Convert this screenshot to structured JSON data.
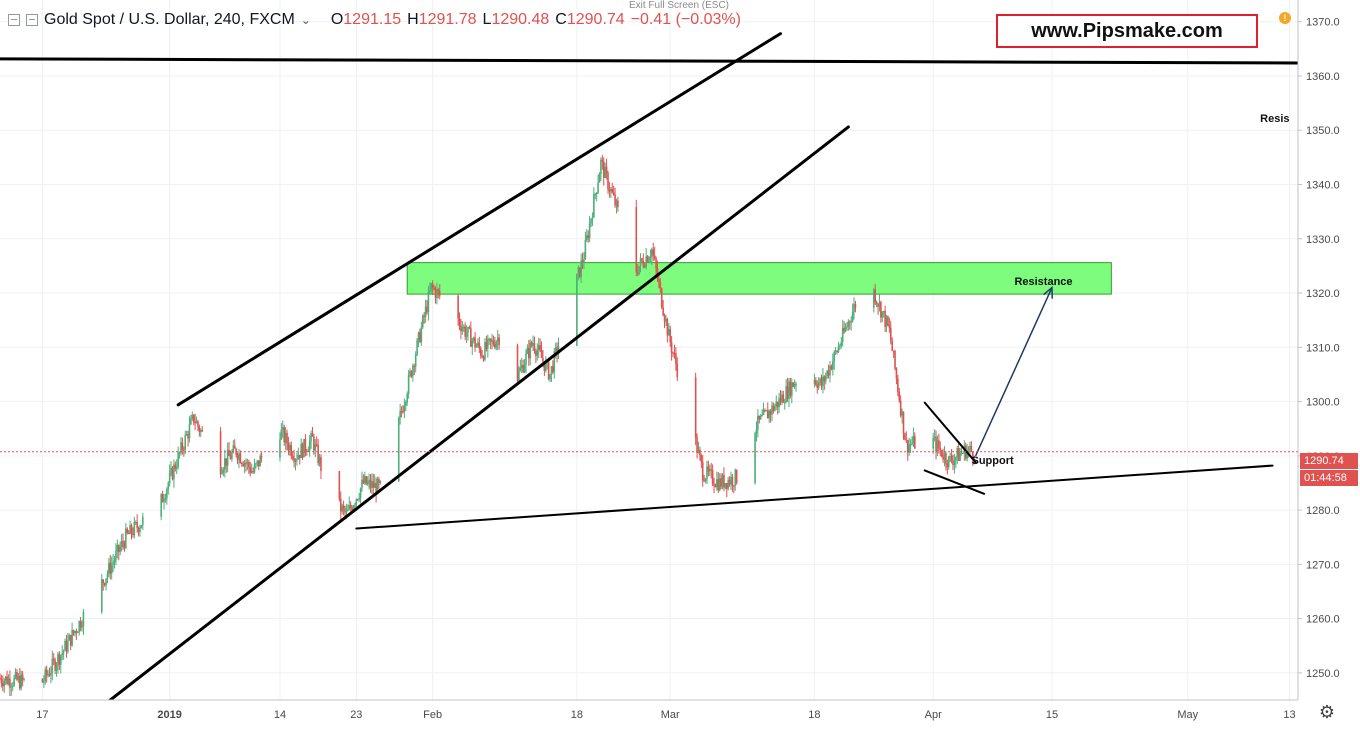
{
  "header": {
    "symbol_title": "Gold Spot / U.S. Dollar, 240, FXCM",
    "open_label": "O",
    "open_value": "1291.15",
    "high_label": "H",
    "high_value": "1291.78",
    "low_label": "L",
    "low_value": "1290.48",
    "close_label": "C",
    "close_value": "1290.74",
    "change": "−0.41 (−0.03%)"
  },
  "exit_fullscreen": "Exit Full Screen (ESC)",
  "watermark": "www.Pipsmake.com",
  "price_badge": "1290.74",
  "timer_badge": "01:44:58",
  "colors": {
    "up": "#4caf7a",
    "down": "#e0524f",
    "zone": "#7dfc7d",
    "grid": "#eef1f5",
    "axis_text": "#4a4a4a",
    "brand_border": "#e0202a"
  },
  "chart_data": {
    "type": "candlestick",
    "title": "Gold Spot / U.S. Dollar, 240, FXCM",
    "ylim": [
      1245,
      1374
    ],
    "y_ticks": [
      1250,
      1260,
      1270,
      1280,
      1290,
      1300,
      1310,
      1320,
      1330,
      1340,
      1350,
      1360,
      1370
    ],
    "x_ticks": [
      "17",
      "2019",
      "14",
      "23",
      "Feb",
      "18",
      "Mar",
      "18",
      "Apr",
      "15",
      "May",
      "13"
    ],
    "x_tick_dates": [
      "2018-12-17",
      "2019-01-01",
      "2019-01-14",
      "2019-01-23",
      "2019-02-01",
      "2019-02-18",
      "2019-03-01",
      "2019-03-18",
      "2019-04-01",
      "2019-04-15",
      "2019-05-01",
      "2019-05-13"
    ],
    "x_range": [
      "2018-12-12",
      "2019-05-14"
    ],
    "current_price": 1290.74,
    "price_path": [
      [
        "2018-12-12",
        1249
      ],
      [
        "2018-12-17",
        1248
      ],
      [
        "2018-12-20",
        1255
      ],
      [
        "2018-12-24",
        1266
      ],
      [
        "2018-12-27",
        1275
      ],
      [
        "2018-12-31",
        1281
      ],
      [
        "2019-01-02",
        1289
      ],
      [
        "2019-01-04",
        1297
      ],
      [
        "2019-01-07",
        1288
      ],
      [
        "2019-01-09",
        1291
      ],
      [
        "2019-01-11",
        1287
      ],
      [
        "2019-01-14",
        1295
      ],
      [
        "2019-01-16",
        1290
      ],
      [
        "2019-01-18",
        1293
      ],
      [
        "2019-01-20",
        1283
      ],
      [
        "2019-01-22",
        1279
      ],
      [
        "2019-01-24",
        1285
      ],
      [
        "2019-01-26",
        1284
      ],
      [
        "2019-01-28",
        1295
      ],
      [
        "2019-01-30",
        1308
      ],
      [
        "2019-02-01",
        1321
      ],
      [
        "2019-02-03",
        1318
      ],
      [
        "2019-02-05",
        1313
      ],
      [
        "2019-02-07",
        1309
      ],
      [
        "2019-02-09",
        1312
      ],
      [
        "2019-02-11",
        1304
      ],
      [
        "2019-02-13",
        1311
      ],
      [
        "2019-02-15",
        1305
      ],
      [
        "2019-02-17",
        1316
      ],
      [
        "2019-02-19",
        1327
      ],
      [
        "2019-02-21",
        1344
      ],
      [
        "2019-02-23",
        1335
      ],
      [
        "2019-02-25",
        1324
      ],
      [
        "2019-02-27",
        1328
      ],
      [
        "2019-03-01",
        1312
      ],
      [
        "2019-03-03",
        1300
      ],
      [
        "2019-03-05",
        1287
      ],
      [
        "2019-03-07",
        1285
      ],
      [
        "2019-03-09",
        1286
      ],
      [
        "2019-03-11",
        1295
      ],
      [
        "2019-03-14",
        1300
      ],
      [
        "2019-03-17",
        1306
      ],
      [
        "2019-03-19",
        1303
      ],
      [
        "2019-03-21",
        1310
      ],
      [
        "2019-03-23",
        1318
      ],
      [
        "2019-03-25",
        1321
      ],
      [
        "2019-03-27",
        1313
      ],
      [
        "2019-03-29",
        1292
      ],
      [
        "2019-04-01",
        1293
      ],
      [
        "2019-04-03",
        1289
      ],
      [
        "2019-04-05",
        1291
      ],
      [
        "2019-04-06",
        1290.74
      ]
    ],
    "resistance_zone": {
      "y_from": 1319.8,
      "y_to": 1325.6,
      "x_from": "2019-01-29",
      "x_to": "2019-04-22"
    },
    "annotations": [
      {
        "text": "Resistance",
        "x": "2019-04-14",
        "y": 1321.5
      },
      {
        "text": "Support",
        "x": "2019-04-08",
        "y": 1288.5
      },
      {
        "text": "Resis",
        "x": "2019-05-13",
        "y": 1351.5
      }
    ],
    "trendlines": [
      {
        "name": "top-horizontal",
        "from": [
          "2018-12-01",
          1363.2
        ],
        "to": [
          "2019-05-14",
          1362.4
        ],
        "width": 3
      },
      {
        "name": "channel-upper",
        "from": [
          "2019-01-02",
          1299.4
        ],
        "to": [
          "2019-03-14",
          1367.8
        ],
        "width": 3
      },
      {
        "name": "channel-lower",
        "from": [
          "2018-12-24",
          1243.8
        ],
        "to": [
          "2019-03-22",
          1350.6
        ],
        "width": 3
      },
      {
        "name": "support-line",
        "from": [
          "2019-01-23",
          1276.6
        ],
        "to": [
          "2019-05-11",
          1288.2
        ],
        "width": 2
      },
      {
        "name": "wedge-upper",
        "from": [
          "2019-03-31",
          1299.8
        ],
        "to": [
          "2019-04-06",
          1288.8
        ],
        "width": 2
      },
      {
        "name": "wedge-lower",
        "from": [
          "2019-03-31",
          1287.3
        ],
        "to": [
          "2019-04-07",
          1283.0
        ],
        "width": 2
      }
    ],
    "projection_arrow": {
      "from": [
        "2019-04-06",
        1290.0
      ],
      "to": [
        "2019-04-15",
        1321.0
      ],
      "color": "#1f3a66"
    },
    "grid": true
  }
}
